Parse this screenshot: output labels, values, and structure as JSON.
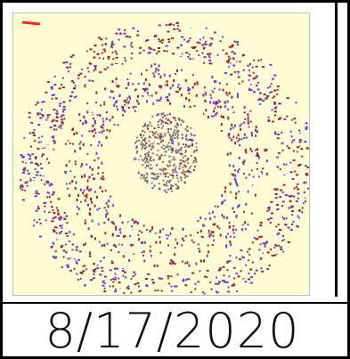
{
  "date": "8/17/2020",
  "colors": {
    "seal_bg": "#fffbd2",
    "ink_red": "#a0261c",
    "ink_purple": "#6d3bdb",
    "ink_gray": "#7d7d7d",
    "ink_white": "#ffffff",
    "rule": "#000000",
    "text": "#111111"
  }
}
